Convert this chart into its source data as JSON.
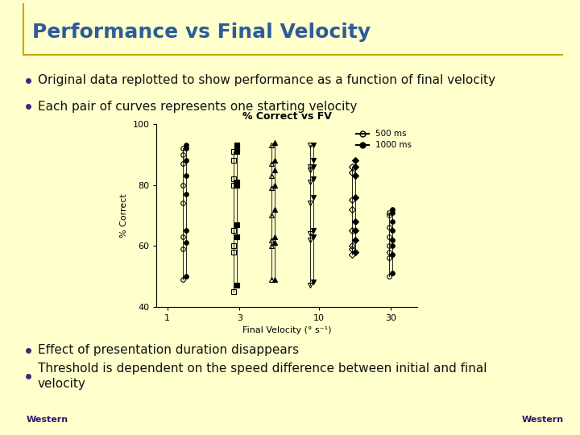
{
  "title": "Performance vs Final Velocity",
  "bullet1": "Original data replotted to show performance as a function of final velocity",
  "bullet2": "Each pair of curves represents one starting velocity",
  "bullet3": "Effect of presentation duration disappears",
  "bullet4": "Threshold is dependent on the speed difference between initial and final\nvelocity",
  "chart_title": "% Correct vs FV",
  "xlabel": "Final Velocity (° s⁻¹)",
  "ylabel": "% Correct",
  "bg_color": "#FFFFCC",
  "title_color": "#2E5B9A",
  "bullet_color_dark": "#3A2A7A",
  "ylim": [
    40,
    100
  ],
  "yticks": [
    40,
    60,
    80,
    100
  ],
  "columns_data": [
    {
      "x": 1.3,
      "y_500": [
        49,
        59,
        63,
        74,
        80,
        87,
        90,
        92
      ],
      "y_1000": [
        50,
        61,
        65,
        77,
        83,
        88,
        92,
        93
      ],
      "m": "o"
    },
    {
      "x": 2.8,
      "y_500": [
        45,
        58,
        60,
        65,
        80,
        82,
        88,
        91
      ],
      "y_1000": [
        47,
        63,
        67,
        80,
        81,
        91,
        92,
        93
      ],
      "m": "s"
    },
    {
      "x": 5.0,
      "y_500": [
        49,
        60,
        62,
        70,
        79,
        83,
        87,
        93
      ],
      "y_1000": [
        49,
        61,
        63,
        72,
        80,
        85,
        88,
        94
      ],
      "m": "^"
    },
    {
      "x": 9.0,
      "y_500": [
        47,
        62,
        64,
        74,
        81,
        85,
        86,
        93
      ],
      "y_1000": [
        48,
        63,
        65,
        76,
        82,
        86,
        88,
        93
      ],
      "m": "v"
    },
    {
      "x": 17.0,
      "y_500": [
        57,
        59,
        60,
        65,
        72,
        75,
        84,
        86
      ],
      "y_1000": [
        58,
        62,
        65,
        68,
        76,
        83,
        86,
        88
      ],
      "m": "D"
    },
    {
      "x": 30.0,
      "y_500": [
        50,
        56,
        58,
        60,
        63,
        66,
        70,
        71
      ],
      "y_1000": [
        51,
        57,
        60,
        62,
        65,
        68,
        71,
        72
      ],
      "m": "o"
    }
  ],
  "title_fontsize": 18,
  "bullet_fontsize": 11,
  "chart_title_fontsize": 9,
  "axis_label_fontsize": 8,
  "tick_fontsize": 8
}
